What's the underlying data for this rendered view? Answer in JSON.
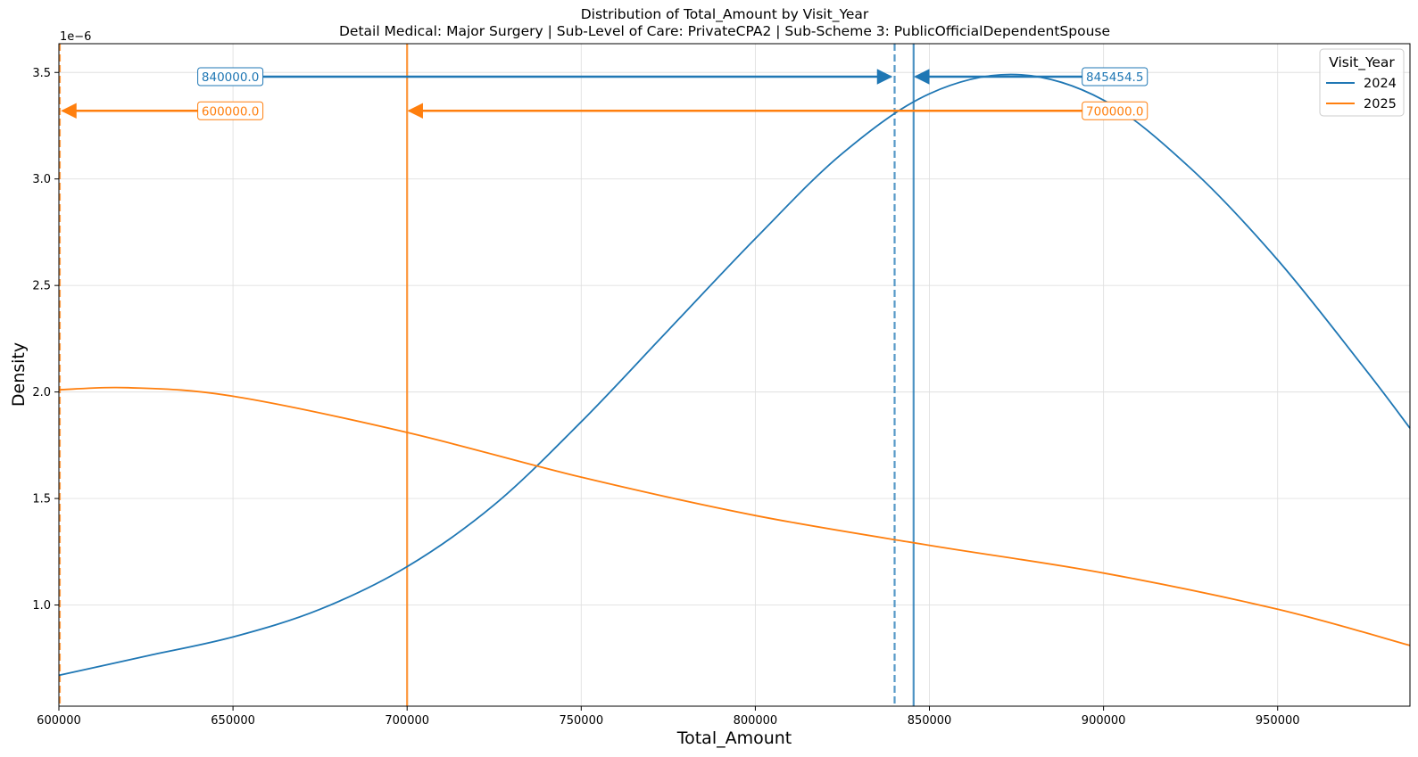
{
  "chart_data": {
    "type": "line",
    "title": "Distribution of Total_Amount by Visit_Year",
    "subtitle": "Detail Medical: Major Surgery | Sub-Level of Care: PrivateCPA2 | Sub-Scheme 3: PublicOfficialDependentSpouse",
    "xlabel": "Total_Amount",
    "ylabel": "Density",
    "y_scale_label": "1e−6",
    "xlim": [
      600000,
      988000
    ],
    "ylim": [
      5.25e-07,
      3.635e-06
    ],
    "x_ticks": [
      600000,
      650000,
      700000,
      750000,
      800000,
      850000,
      900000,
      950000
    ],
    "x_tick_labels": [
      "600000",
      "650000",
      "700000",
      "750000",
      "800000",
      "850000",
      "900000",
      "950000"
    ],
    "y_ticks": [
      1e-06,
      1.5e-06,
      2e-06,
      2.5e-06,
      3e-06,
      3.5e-06
    ],
    "y_tick_labels": [
      "1.0",
      "1.5",
      "2.0",
      "2.5",
      "3.0",
      "3.5"
    ],
    "grid": true,
    "legend": {
      "title": "Visit_Year",
      "position": "top-right",
      "entries": [
        "2024",
        "2025"
      ]
    },
    "series": [
      {
        "name": "2024",
        "color": "#1f77b4",
        "x": [
          600000,
          625000,
          650000,
          675000,
          700000,
          725000,
          750000,
          775000,
          800000,
          825000,
          850000,
          875000,
          900000,
          925000,
          950000,
          975000,
          988000
        ],
        "y": [
          6.7e-07,
          7.6e-07,
          8.5e-07,
          9.8e-07,
          1.18e-06,
          1.47e-06,
          1.86e-06,
          2.29e-06,
          2.72e-06,
          3.12e-06,
          3.4e-06,
          3.49e-06,
          3.37e-06,
          3.05e-06,
          2.62e-06,
          2.11e-06,
          1.83e-06
        ]
      },
      {
        "name": "2025",
        "color": "#ff7f0e",
        "x": [
          600000,
          620000,
          650000,
          700000,
          750000,
          800000,
          850000,
          900000,
          950000,
          988000
        ],
        "y": [
          2.01e-06,
          2.02e-06,
          1.98e-06,
          1.81e-06,
          1.6e-06,
          1.42e-06,
          1.28e-06,
          1.15e-06,
          9.8e-07,
          8.1e-07
        ]
      }
    ],
    "reference_lines": [
      {
        "series": "2024",
        "x": 840000,
        "style": "dashed",
        "color": "#1f77b4",
        "label": "840000.0"
      },
      {
        "series": "2024",
        "x": 845454.5,
        "style": "solid",
        "color": "#1f77b4",
        "label": "845454.5"
      },
      {
        "series": "2025",
        "x": 600000,
        "style": "dashed",
        "color": "#ff7f0e",
        "label": "600000.0"
      },
      {
        "series": "2025",
        "x": 700000,
        "style": "solid",
        "color": "#ff7f0e",
        "label": "700000.0"
      }
    ]
  }
}
